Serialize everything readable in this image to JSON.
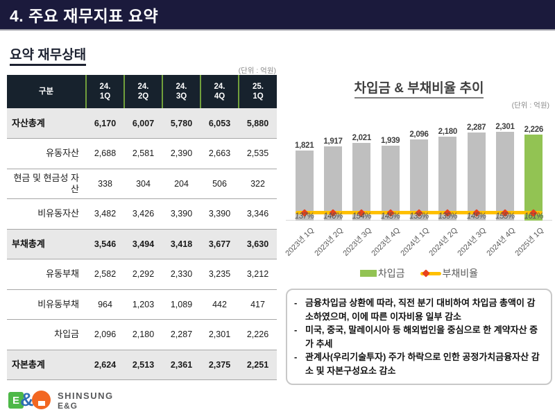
{
  "slide": {
    "title": "4. 주요 재무지표 요약"
  },
  "left": {
    "section_title": "요약 재무상태",
    "unit_label": "(단위 : 억원)",
    "table": {
      "header": {
        "first_col": "구분",
        "quarters": [
          [
            "24.",
            "1Q"
          ],
          [
            "24.",
            "2Q"
          ],
          [
            "24.",
            "3Q"
          ],
          [
            "24.",
            "4Q"
          ],
          [
            "25.",
            "1Q"
          ]
        ]
      },
      "rows": [
        {
          "label": "자산총계",
          "emphasis": true,
          "values": [
            "6,170",
            "6,007",
            "5,780",
            "6,053",
            "5,880"
          ]
        },
        {
          "label": "유동자산",
          "emphasis": false,
          "values": [
            "2,688",
            "2,581",
            "2,390",
            "2,663",
            "2,535"
          ]
        },
        {
          "label": "현금 및 현금성 자산",
          "emphasis": false,
          "values": [
            "338",
            "304",
            "204",
            "506",
            "322"
          ]
        },
        {
          "label": "비유동자산",
          "emphasis": false,
          "values": [
            "3,482",
            "3,426",
            "3,390",
            "3,390",
            "3,346"
          ]
        },
        {
          "label": "부채총계",
          "emphasis": true,
          "values": [
            "3,546",
            "3,494",
            "3,418",
            "3,677",
            "3,630"
          ]
        },
        {
          "label": "유동부채",
          "emphasis": false,
          "values": [
            "2,582",
            "2,292",
            "2,330",
            "3,235",
            "3,212"
          ]
        },
        {
          "label": "비유동부채",
          "emphasis": false,
          "values": [
            "964",
            "1,203",
            "1,089",
            "442",
            "417"
          ]
        },
        {
          "label": "차입금",
          "emphasis": false,
          "values": [
            "2,096",
            "2,180",
            "2,287",
            "2,301",
            "2,226"
          ]
        },
        {
          "label": "자본총계",
          "emphasis": true,
          "values": [
            "2,624",
            "2,513",
            "2,361",
            "2,375",
            "2,251"
          ]
        }
      ]
    }
  },
  "right": {
    "chart_title": "차입금 & 부채비율 추이",
    "unit_label": "(단위 : 억원)",
    "legend": {
      "bar_label": "차입금",
      "line_label": "부채비율"
    },
    "notes": [
      "금융차입금 상환에 따라, 직전 분기 대비하여 차입금 총액이 감소하였으며, 이에 따른 이자비용 일부 감소",
      "미국, 중국, 말레이시아 등 해외법인을 중심으로 한 계약자산 증가 추세",
      "관계사(우리기술투자) 주가 하락으로 인한 공정가치금융자산 감소 및 자본구성요소 감소"
    ]
  },
  "chart_data": {
    "type": "bar",
    "title": "차입금 & 부채비율 추이",
    "unit": "억원",
    "categories": [
      "2023년 1Q",
      "2023년 2Q",
      "2023년 3Q",
      "2023년 4Q",
      "2024년 1Q",
      "2024년 2Q",
      "2024년 3Q",
      "2024년 4Q",
      "2025년 1Q"
    ],
    "series": [
      {
        "name": "차입금",
        "type": "bar",
        "values": [
          1821,
          1917,
          2021,
          1939,
          2096,
          2180,
          2287,
          2301,
          2226
        ]
      },
      {
        "name": "부채비율",
        "type": "line",
        "values_pct": [
          137,
          146,
          154,
          145,
          135,
          139,
          145,
          155,
          161
        ]
      }
    ],
    "legend_position": "bottom",
    "grid": false,
    "highlight_last_bar": true,
    "colors": {
      "bar": "#bfbfbf",
      "bar_highlight": "#92c353",
      "line": "#ffc000",
      "marker": "#e8421c"
    }
  },
  "footer": {
    "logo_text_line1": "SHINSUNG",
    "logo_text_line2": "E&G",
    "logo_mark_letter": "E",
    "logo_mark_amp": "&"
  }
}
